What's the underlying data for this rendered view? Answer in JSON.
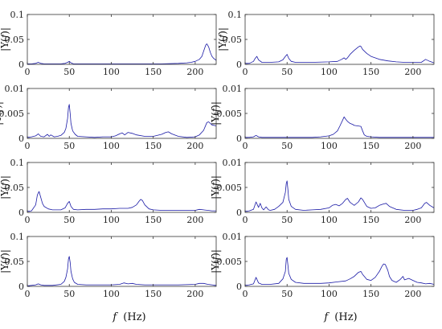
{
  "figure": {
    "xlabel_italic": "f",
    "xlabel_unit": "(Hz)",
    "ylabel": "|Y(f)|"
  },
  "chart_data": [
    {
      "type": "line",
      "row": 0,
      "col": 0,
      "xlim": [
        0,
        225
      ],
      "ylim": [
        0,
        0.1
      ],
      "xticks": [
        0,
        50,
        100,
        150,
        200
      ],
      "yticks": [
        0,
        0.05,
        0.1
      ],
      "ytick_labels": [
        "0",
        "0.05",
        "0.1"
      ],
      "color": "#1a1aa6",
      "x": [
        0,
        5,
        10,
        13,
        16,
        20,
        30,
        40,
        45,
        48,
        50,
        52,
        55,
        60,
        80,
        100,
        120,
        140,
        160,
        180,
        190,
        195,
        200,
        205,
        208,
        210,
        212,
        213,
        214,
        216,
        218,
        220,
        222,
        225
      ],
      "y": [
        0.001,
        0.001,
        0.002,
        0.004,
        0.002,
        0.001,
        0.001,
        0.001,
        0.002,
        0.004,
        0.006,
        0.003,
        0.001,
        0.001,
        0.001,
        0.001,
        0.001,
        0.001,
        0.001,
        0.002,
        0.003,
        0.004,
        0.006,
        0.01,
        0.016,
        0.026,
        0.036,
        0.04,
        0.041,
        0.035,
        0.024,
        0.016,
        0.012,
        0.008
      ]
    },
    {
      "type": "line",
      "row": 0,
      "col": 1,
      "xlim": [
        0,
        225
      ],
      "ylim": [
        0,
        0.1
      ],
      "xticks": [
        0,
        50,
        100,
        150,
        200
      ],
      "yticks": [
        0,
        0.05,
        0.1
      ],
      "ytick_labels": [
        "0",
        "0.05",
        "0.1"
      ],
      "color": "#1a1aa6",
      "x": [
        0,
        5,
        10,
        12,
        14,
        16,
        20,
        30,
        40,
        45,
        48,
        50,
        52,
        55,
        60,
        80,
        100,
        110,
        115,
        118,
        120,
        122,
        125,
        130,
        135,
        137,
        138,
        140,
        145,
        150,
        160,
        170,
        180,
        190,
        200,
        210,
        215,
        220,
        225
      ],
      "y": [
        0.002,
        0.002,
        0.006,
        0.012,
        0.016,
        0.009,
        0.004,
        0.004,
        0.005,
        0.009,
        0.016,
        0.02,
        0.012,
        0.006,
        0.004,
        0.004,
        0.005,
        0.006,
        0.01,
        0.013,
        0.01,
        0.013,
        0.02,
        0.028,
        0.035,
        0.037,
        0.036,
        0.03,
        0.022,
        0.016,
        0.01,
        0.007,
        0.005,
        0.004,
        0.004,
        0.004,
        0.01,
        0.006,
        0.003
      ]
    },
    {
      "type": "line",
      "row": 1,
      "col": 0,
      "xlim": [
        0,
        225
      ],
      "ylim": [
        0,
        0.01
      ],
      "xticks": [
        0,
        50,
        100,
        150,
        200
      ],
      "yticks": [
        0,
        0.005,
        0.01
      ],
      "ytick_labels": [
        "0",
        "0.005",
        "0.01"
      ],
      "color": "#1a1aa6",
      "x": [
        0,
        5,
        10,
        13,
        16,
        20,
        24,
        26,
        28,
        32,
        36,
        40,
        44,
        46,
        48,
        49,
        50,
        51,
        52,
        54,
        57,
        60,
        70,
        80,
        90,
        100,
        105,
        110,
        113,
        116,
        120,
        125,
        130,
        140,
        150,
        160,
        165,
        168,
        172,
        180,
        190,
        200,
        205,
        210,
        214,
        216,
        220,
        225
      ],
      "y": [
        0.0002,
        0.0003,
        0.0005,
        0.0009,
        0.0004,
        0.0003,
        0.0008,
        0.0004,
        0.0007,
        0.0003,
        0.0004,
        0.0006,
        0.0012,
        0.002,
        0.004,
        0.0062,
        0.0068,
        0.005,
        0.003,
        0.0015,
        0.0008,
        0.0004,
        0.0003,
        0.0002,
        0.0003,
        0.0003,
        0.0005,
        0.0009,
        0.0011,
        0.0007,
        0.0012,
        0.001,
        0.0007,
        0.0004,
        0.0004,
        0.0008,
        0.0012,
        0.0013,
        0.0009,
        0.0004,
        0.0002,
        0.0003,
        0.0007,
        0.0016,
        0.0032,
        0.0033,
        0.0027,
        0.0025
      ]
    },
    {
      "type": "line",
      "row": 1,
      "col": 1,
      "xlim": [
        0,
        225
      ],
      "ylim": [
        0,
        0.01
      ],
      "xticks": [
        0,
        50,
        100,
        150,
        200
      ],
      "yticks": [
        0,
        0.005,
        0.01
      ],
      "ytick_labels": [
        "0",
        "0.005",
        "0.01"
      ],
      "color": "#1a1aa6",
      "x": [
        0,
        5,
        10,
        13,
        16,
        20,
        30,
        40,
        50,
        60,
        70,
        80,
        90,
        100,
        105,
        110,
        113,
        116,
        118,
        120,
        122,
        125,
        128,
        130,
        134,
        138,
        140,
        142,
        145,
        150,
        160,
        170,
        180,
        190,
        200,
        210,
        215,
        220,
        225
      ],
      "y": [
        0.0002,
        0.0002,
        0.0003,
        0.0006,
        0.0003,
        0.0002,
        0.0002,
        0.0002,
        0.0002,
        0.0002,
        0.0002,
        0.0002,
        0.0003,
        0.0005,
        0.0008,
        0.0015,
        0.0025,
        0.0036,
        0.0043,
        0.0038,
        0.0034,
        0.003,
        0.0028,
        0.0026,
        0.0025,
        0.0024,
        0.0015,
        0.0007,
        0.0004,
        0.0003,
        0.0002,
        0.0002,
        0.0002,
        0.0002,
        0.0002,
        0.0002,
        0.0002,
        0.0002,
        0.0002
      ]
    },
    {
      "type": "line",
      "row": 2,
      "col": 0,
      "xlim": [
        0,
        225
      ],
      "ylim": [
        0,
        0.1
      ],
      "xticks": [
        0,
        50,
        100,
        150,
        200
      ],
      "yticks": [
        0,
        0.05,
        0.1
      ],
      "ytick_labels": [
        "0",
        "0.05",
        "0.1"
      ],
      "color": "#1a1aa6",
      "x": [
        0,
        5,
        10,
        12,
        14,
        16,
        18,
        20,
        25,
        30,
        40,
        45,
        48,
        50,
        52,
        55,
        60,
        70,
        80,
        90,
        100,
        110,
        120,
        125,
        130,
        133,
        135,
        137,
        140,
        145,
        150,
        160,
        170,
        180,
        190,
        200,
        205,
        210,
        215,
        220,
        225
      ],
      "y": [
        0.002,
        0.003,
        0.015,
        0.035,
        0.042,
        0.03,
        0.018,
        0.012,
        0.007,
        0.005,
        0.005,
        0.009,
        0.018,
        0.022,
        0.012,
        0.006,
        0.005,
        0.006,
        0.006,
        0.007,
        0.007,
        0.008,
        0.008,
        0.01,
        0.015,
        0.022,
        0.026,
        0.024,
        0.015,
        0.007,
        0.005,
        0.004,
        0.004,
        0.004,
        0.004,
        0.004,
        0.006,
        0.005,
        0.004,
        0.003,
        0.003
      ]
    },
    {
      "type": "line",
      "row": 2,
      "col": 1,
      "xlim": [
        0,
        225
      ],
      "ylim": [
        0,
        0.01
      ],
      "xticks": [
        0,
        50,
        100,
        150,
        200
      ],
      "yticks": [
        0,
        0.005,
        0.01
      ],
      "ytick_labels": [
        "0",
        "0.005",
        "0.01"
      ],
      "color": "#1a1aa6",
      "x": [
        0,
        5,
        10,
        13,
        16,
        18,
        20,
        22,
        25,
        28,
        30,
        35,
        40,
        45,
        48,
        49,
        50,
        51,
        52,
        55,
        60,
        70,
        80,
        90,
        100,
        104,
        108,
        112,
        116,
        120,
        122,
        125,
        130,
        135,
        138,
        140,
        145,
        150,
        155,
        160,
        165,
        168,
        172,
        180,
        190,
        200,
        205,
        210,
        214,
        216,
        220,
        225
      ],
      "y": [
        0.0002,
        0.0003,
        0.0006,
        0.0021,
        0.001,
        0.0018,
        0.0009,
        0.0005,
        0.0011,
        0.0005,
        0.0004,
        0.0006,
        0.0012,
        0.002,
        0.004,
        0.0058,
        0.0063,
        0.0045,
        0.0026,
        0.0012,
        0.0006,
        0.0004,
        0.0005,
        0.0006,
        0.0009,
        0.0014,
        0.0016,
        0.0013,
        0.0018,
        0.0026,
        0.0028,
        0.002,
        0.0014,
        0.0021,
        0.0029,
        0.0026,
        0.0012,
        0.0008,
        0.0009,
        0.0014,
        0.0017,
        0.0018,
        0.0012,
        0.0006,
        0.0004,
        0.0004,
        0.0006,
        0.0009,
        0.0018,
        0.002,
        0.0014,
        0.0009
      ]
    },
    {
      "type": "line",
      "row": 3,
      "col": 0,
      "xlim": [
        0,
        225
      ],
      "ylim": [
        0,
        0.1
      ],
      "xticks": [
        0,
        50,
        100,
        150,
        200
      ],
      "yticks": [
        0,
        0.05,
        0.1
      ],
      "ytick_labels": [
        "0",
        "0.05",
        "0.1"
      ],
      "color": "#1a1aa6",
      "x": [
        0,
        5,
        10,
        13,
        16,
        20,
        30,
        40,
        44,
        46,
        48,
        49,
        50,
        51,
        52,
        54,
        56,
        60,
        70,
        80,
        100,
        110,
        115,
        120,
        125,
        130,
        140,
        150,
        160,
        180,
        200,
        205,
        210,
        215,
        220,
        225
      ],
      "y": [
        0.001,
        0.002,
        0.003,
        0.005,
        0.003,
        0.002,
        0.002,
        0.004,
        0.01,
        0.018,
        0.035,
        0.055,
        0.06,
        0.048,
        0.03,
        0.015,
        0.008,
        0.004,
        0.003,
        0.003,
        0.003,
        0.004,
        0.007,
        0.005,
        0.006,
        0.004,
        0.003,
        0.003,
        0.003,
        0.003,
        0.004,
        0.006,
        0.006,
        0.004,
        0.003,
        0.002
      ]
    },
    {
      "type": "line",
      "row": 3,
      "col": 1,
      "xlim": [
        0,
        225
      ],
      "ylim": [
        0,
        0.01
      ],
      "xticks": [
        0,
        50,
        100,
        150,
        200
      ],
      "yticks": [
        0,
        0.005,
        0.01
      ],
      "ytick_labels": [
        "0",
        "0.005",
        "0.01"
      ],
      "color": "#1a1aa6",
      "x": [
        0,
        5,
        10,
        13,
        16,
        20,
        30,
        40,
        45,
        48,
        49,
        50,
        51,
        52,
        55,
        60,
        70,
        80,
        90,
        100,
        110,
        120,
        125,
        130,
        135,
        138,
        140,
        145,
        150,
        155,
        160,
        163,
        165,
        167,
        170,
        172,
        175,
        180,
        185,
        188,
        190,
        195,
        200,
        205,
        210,
        215,
        220,
        225
      ],
      "y": [
        0.0002,
        0.0003,
        0.0005,
        0.0018,
        0.0007,
        0.0004,
        0.0004,
        0.0006,
        0.0015,
        0.003,
        0.0054,
        0.0058,
        0.0042,
        0.0026,
        0.0014,
        0.0008,
        0.0006,
        0.0006,
        0.0006,
        0.0007,
        0.0009,
        0.0011,
        0.0015,
        0.002,
        0.0028,
        0.003,
        0.0024,
        0.0014,
        0.0012,
        0.0018,
        0.003,
        0.004,
        0.0045,
        0.0044,
        0.0032,
        0.002,
        0.0012,
        0.0008,
        0.0014,
        0.002,
        0.0013,
        0.0016,
        0.0012,
        0.0008,
        0.0007,
        0.0005,
        0.0006,
        0.0004
      ]
    }
  ]
}
